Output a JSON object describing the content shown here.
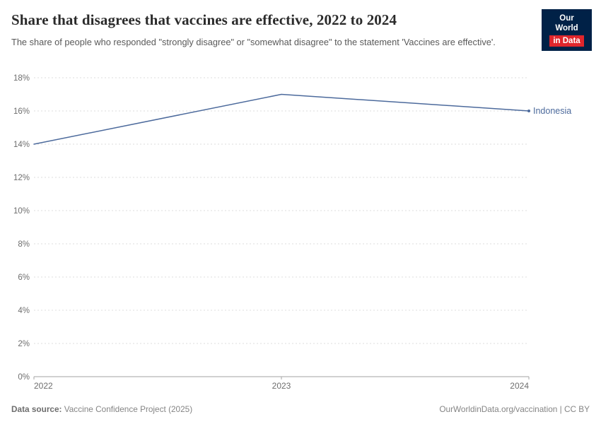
{
  "header": {
    "title": "Share that disagrees that vaccines are effective, 2022 to 2024",
    "subtitle": "The share of people who responded \"strongly disagree\" or \"somewhat disagree\" to the statement 'Vaccines are effective'.",
    "logo": {
      "line1": "Our World",
      "line2": "in Data"
    }
  },
  "chart_data": {
    "type": "line",
    "title": "Share that disagrees that vaccines are effective, 2022 to 2024",
    "x": [
      2022,
      2023,
      2024
    ],
    "series": [
      {
        "name": "Indonesia",
        "values": [
          14,
          17,
          16
        ],
        "color": "#4C6A9C"
      }
    ],
    "ylim": [
      0,
      18
    ],
    "ytick_step": 2,
    "ytick_suffix": "%",
    "xlabel": "",
    "ylabel": "",
    "grid": "horizontal-dashed",
    "legend_position": "right-end-label"
  },
  "footer": {
    "source_label": "Data source:",
    "source_text": "Vaccine Confidence Project (2025)",
    "right_text": "OurWorldinData.org/vaccination | CC BY"
  }
}
